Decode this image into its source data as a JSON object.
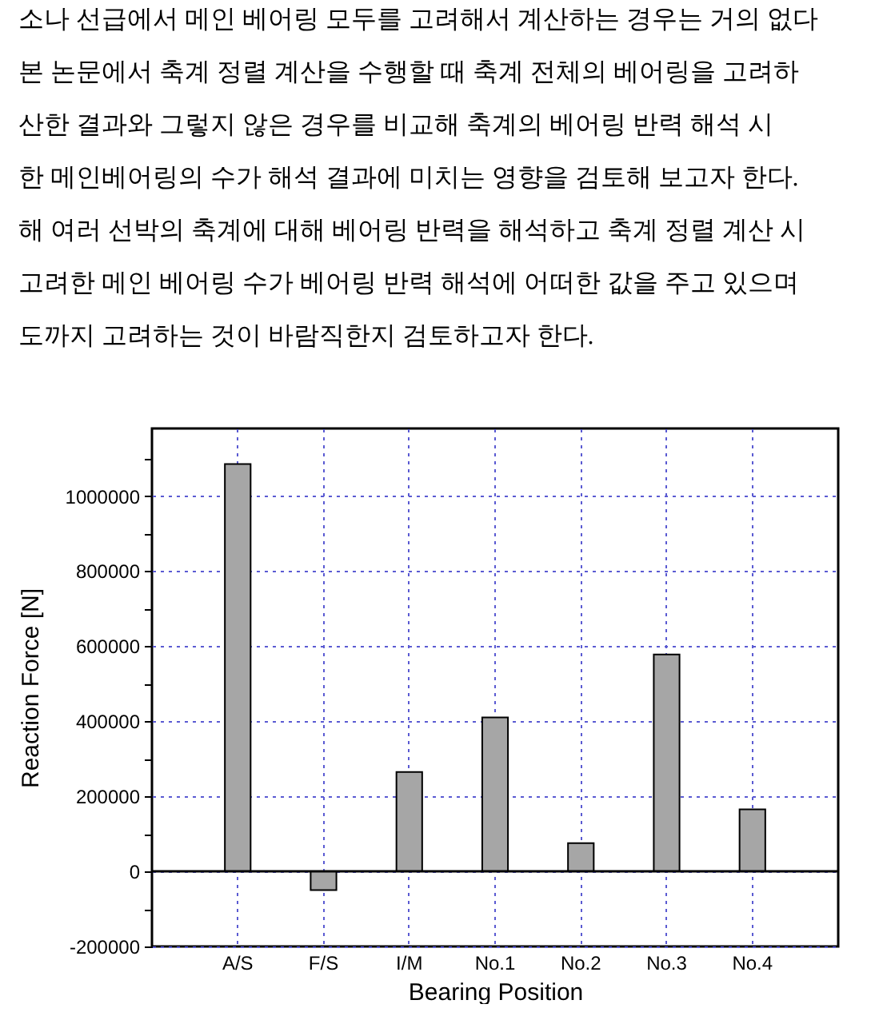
{
  "chart_data": {
    "type": "bar",
    "annotations": [
      "소나 선급에서 메인 베어링 모두를 고려해서 계산하는 경우는 거의 없다",
      "본 논문에서 축계 정렬 계산을 수행할 때 축계 전체의 베어링을 고려하",
      "산한 결과와 그렇지 않은 경우를 비교해 축계의 베어링 반력 해석 시",
      "한 메인베어링의 수가 해석 결과에 미치는 영향을 검토해 보고자 한다.",
      "해 여러 선박의 축계에 대해 베어링 반력을 해석하고 축계 정렬 계산 시",
      "고려한 메인 베어링 수가 베어링 반력 해석에 어떠한 값을 주고 있으며",
      "도까지 고려하는 것이 바람직한지 검토하고자 한다."
    ],
    "xlabel": "Bearing Position",
    "ylabel": "Reaction Force [N]",
    "categories": [
      "A/S",
      "F/S",
      "I/M",
      "No.1",
      "No.2",
      "No.3",
      "No.4"
    ],
    "values": [
      1085000,
      -50000,
      265000,
      410000,
      75000,
      578000,
      165000
    ],
    "color": "#a6a6a6",
    "ylim": [
      -200000,
      1180000
    ],
    "yticks": [
      -200000,
      {
        "value": -100000,
        "label": null
      },
      0,
      {
        "value": 100000,
        "label": null
      },
      200000,
      {
        "value": 300000,
        "label": null
      },
      400000,
      {
        "value": 500000,
        "label": null
      },
      600000,
      {
        "value": 700000,
        "label": null
      },
      800000,
      {
        "value": 900000,
        "label": null
      },
      1000000,
      {
        "value": 1100000,
        "label": null
      }
    ],
    "grid": true,
    "ref_lines": [
      {
        "axis": "y",
        "value": 0,
        "color": "#000000"
      }
    ]
  }
}
